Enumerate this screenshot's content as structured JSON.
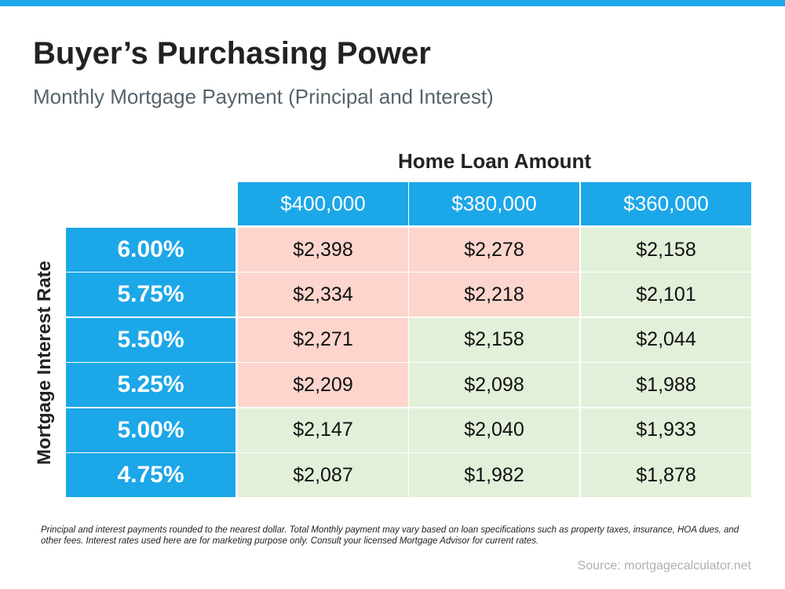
{
  "header": {
    "title": "Buyer’s Purchasing Power",
    "subtitle": "Monthly Mortgage Payment (Principal and Interest)"
  },
  "table": {
    "column_group": "Home Loan Amount",
    "row_group": "Mortgage Interest Rate",
    "columns": [
      "$400,000",
      "$380,000",
      "$360,000"
    ],
    "rows": [
      {
        "rate": "6.00%",
        "cells": [
          {
            "text": "$2,398",
            "color": "#fdd5cc"
          },
          {
            "text": "$2,278",
            "color": "#fdd5cc"
          },
          {
            "text": "$2,158",
            "color": "#e2f0d9"
          }
        ]
      },
      {
        "rate": "5.75%",
        "cells": [
          {
            "text": "$2,334",
            "color": "#fdd5cc"
          },
          {
            "text": "$2,218",
            "color": "#fdd5cc"
          },
          {
            "text": "$2,101",
            "color": "#e2f0d9"
          }
        ]
      },
      {
        "rate": "5.50%",
        "cells": [
          {
            "text": "$2,271",
            "color": "#fdd5cc"
          },
          {
            "text": "$2,158",
            "color": "#e2f0d9"
          },
          {
            "text": "$2,044",
            "color": "#e2f0d9"
          }
        ]
      },
      {
        "rate": "5.25%",
        "cells": [
          {
            "text": "$2,209",
            "color": "#fdd5cc"
          },
          {
            "text": "$2,098",
            "color": "#e2f0d9"
          },
          {
            "text": "$1,988",
            "color": "#e2f0d9"
          }
        ]
      },
      {
        "rate": "5.00%",
        "cells": [
          {
            "text": "$2,147",
            "color": "#e2f0d9"
          },
          {
            "text": "$2,040",
            "color": "#e2f0d9"
          },
          {
            "text": "$1,933",
            "color": "#e2f0d9"
          }
        ]
      },
      {
        "rate": "4.75%",
        "cells": [
          {
            "text": "$2,087",
            "color": "#e2f0d9"
          },
          {
            "text": "$1,982",
            "color": "#e2f0d9"
          },
          {
            "text": "$1,878",
            "color": "#e2f0d9"
          }
        ]
      }
    ]
  },
  "footnote": "Principal and interest payments rounded to the nearest dollar. Total Monthly payment may vary based on loan specifications such as property taxes, insurance, HOA dues, and other fees. Interest rates used here are for marketing purpose only. Consult your licensed Mortgage Advisor for current rates.",
  "source": "Source: mortgagecalculator.net"
}
